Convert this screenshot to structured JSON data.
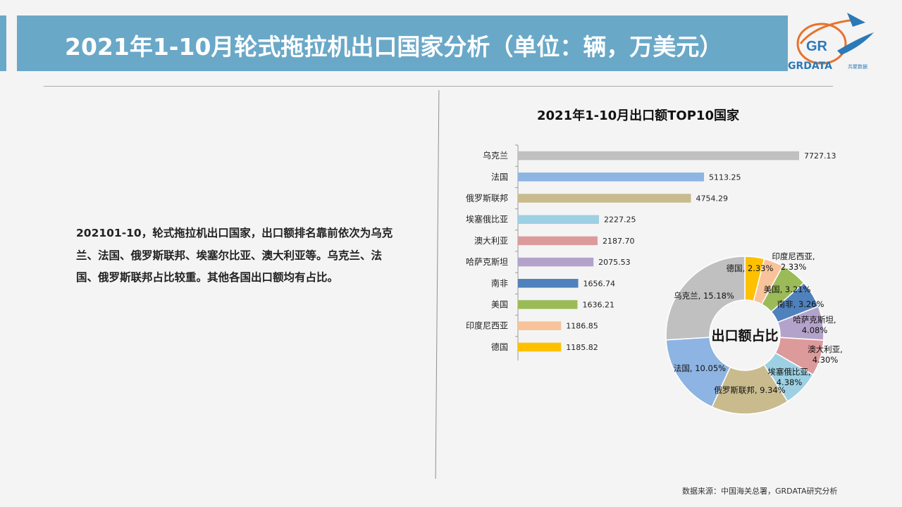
{
  "header": {
    "title": "2021年1-10月轮式拖拉机出口国家分析（单位：辆，万美元）",
    "logo_text": "GRDATA",
    "logo_sub": "共聚数据"
  },
  "summary": {
    "text": "202101-10，轮式拖拉机出口国家，出口额排名靠前依次为乌克兰、法国、俄罗斯联邦、埃塞尔比亚、澳大利亚等。乌克兰、法国、俄罗斯联邦占比较重。其他各国出口额均有占比。"
  },
  "footer": {
    "source": "数据来源：中国海关总署，GRDATA研究分析"
  },
  "colors": {
    "title_bar": "#6aa8c8",
    "accent": "#2c79b8"
  },
  "chart_data": [
    {
      "type": "bar",
      "orientation": "horizontal",
      "title": "2021年1-10月出口额TOP10国家",
      "categories": [
        "乌克兰",
        "法国",
        "俄罗斯联邦",
        "埃塞俄比亚",
        "澳大利亚",
        "哈萨克斯坦",
        "南非",
        "美国",
        "印度尼西亚",
        "德国"
      ],
      "values": [
        7727.13,
        5113.25,
        4754.29,
        2227.25,
        2187.7,
        2075.53,
        1656.74,
        1636.21,
        1186.85,
        1185.82
      ],
      "value_labels": [
        "7727.13",
        "5113.25",
        "4754.29",
        "2227.25",
        "2187.70",
        "2075.53",
        "1656.74",
        "1636.21",
        "1186.85",
        "1185.82"
      ],
      "colors": [
        "#c0c0c0",
        "#8db4e2",
        "#c9bb8e",
        "#9dd0e3",
        "#dd9a9a",
        "#b3a3cb",
        "#4f81bd",
        "#9bbb59",
        "#f8c39a",
        "#ffc000"
      ],
      "xlim": [
        0,
        7727.13
      ]
    },
    {
      "type": "pie",
      "style": "donut",
      "center_label": "出口额占比",
      "slices": [
        {
          "name": "德国",
          "value": 2.33,
          "label": "德国, 2.33%",
          "color": "#ffc000"
        },
        {
          "name": "印度尼西亚",
          "value": 2.33,
          "label": "印度尼西亚, 2.33%",
          "color": "#f8c39a"
        },
        {
          "name": "美国",
          "value": 3.21,
          "label": "美国, 3.21%",
          "color": "#9bbb59"
        },
        {
          "name": "南非",
          "value": 3.26,
          "label": "南非, 3.26%",
          "color": "#4f81bd"
        },
        {
          "name": "哈萨克斯坦",
          "value": 4.08,
          "label": "哈萨克斯坦, 4.08%",
          "color": "#b3a3cb"
        },
        {
          "name": "澳大利亚",
          "value": 4.3,
          "label": "澳大利亚, 4.30%",
          "color": "#dd9a9a"
        },
        {
          "name": "埃塞俄比亚",
          "value": 4.38,
          "label": "埃塞俄比亚, 4.38%",
          "color": "#9dd0e3"
        },
        {
          "name": "俄罗斯联邦",
          "value": 9.34,
          "label": "俄罗斯联邦, 9.34%",
          "color": "#c9bb8e"
        },
        {
          "name": "法国",
          "value": 10.05,
          "label": "法国, 10.05%",
          "color": "#8db4e2"
        },
        {
          "name": "乌克兰",
          "value": 15.18,
          "label": "乌克兰, 15.18%",
          "color": "#c0c0c0"
        }
      ]
    }
  ]
}
